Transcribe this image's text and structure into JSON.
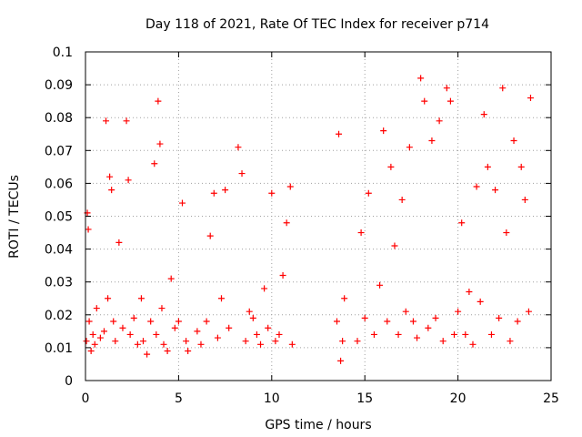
{
  "chart_data": {
    "type": "scatter",
    "title": "Day 118 of 2021, Rate Of TEC Index for receiver p714",
    "xlabel": "GPS time / hours",
    "ylabel": "ROTI / TECUs",
    "xlim": [
      0,
      25
    ],
    "ylim": [
      0,
      0.1
    ],
    "x_ticks": [
      0,
      5,
      10,
      15,
      20,
      25
    ],
    "x_tick_labels": [
      "0",
      "5",
      "10",
      "15",
      "20",
      "25"
    ],
    "y_ticks": [
      0,
      0.01,
      0.02,
      0.03,
      0.04,
      0.05,
      0.06,
      0.07,
      0.08,
      0.09,
      0.1
    ],
    "y_tick_labels": [
      "0",
      "0.01",
      "0.02",
      "0.03",
      "0.04",
      "0.05",
      "0.06",
      "0.07",
      "0.08",
      "0.09",
      "0.1"
    ],
    "grid": true,
    "marker": "+",
    "marker_color": "#ff0000",
    "series": [
      {
        "name": "ROTI",
        "x": [
          0.05,
          0.1,
          0.15,
          0.2,
          0.3,
          0.4,
          0.5,
          0.6,
          0.8,
          1.0,
          1.1,
          1.2,
          1.3,
          1.4,
          1.5,
          1.6,
          1.8,
          2.0,
          2.2,
          2.3,
          2.4,
          2.6,
          2.8,
          3.0,
          3.1,
          3.3,
          3.5,
          3.7,
          3.8,
          3.9,
          4.0,
          4.1,
          4.2,
          4.4,
          4.6,
          4.8,
          5.0,
          5.2,
          5.4,
          5.5,
          6.0,
          6.2,
          6.5,
          6.7,
          6.9,
          7.1,
          7.3,
          7.5,
          7.7,
          8.2,
          8.4,
          8.6,
          8.8,
          9.0,
          9.2,
          9.4,
          9.6,
          9.8,
          10.0,
          10.2,
          10.4,
          10.6,
          10.8,
          11.0,
          11.1,
          13.5,
          13.6,
          13.7,
          13.8,
          13.9,
          14.6,
          14.8,
          15.0,
          15.2,
          15.5,
          15.8,
          16.0,
          16.2,
          16.4,
          16.6,
          16.8,
          17.0,
          17.2,
          17.4,
          17.6,
          17.8,
          18.0,
          18.2,
          18.4,
          18.6,
          18.8,
          19.0,
          19.2,
          19.4,
          19.6,
          19.8,
          20.0,
          20.2,
          20.4,
          20.6,
          20.8,
          21.0,
          21.2,
          21.4,
          21.6,
          21.8,
          22.0,
          22.2,
          22.4,
          22.6,
          22.8,
          23.0,
          23.2,
          23.4,
          23.6,
          23.8,
          23.9
        ],
        "y": [
          0.012,
          0.051,
          0.046,
          0.018,
          0.009,
          0.014,
          0.011,
          0.022,
          0.013,
          0.015,
          0.079,
          0.025,
          0.062,
          0.058,
          0.018,
          0.012,
          0.042,
          0.016,
          0.079,
          0.061,
          0.014,
          0.019,
          0.011,
          0.025,
          0.012,
          0.008,
          0.018,
          0.066,
          0.014,
          0.085,
          0.072,
          0.022,
          0.011,
          0.009,
          0.031,
          0.016,
          0.018,
          0.054,
          0.012,
          0.009,
          0.015,
          0.011,
          0.018,
          0.044,
          0.057,
          0.013,
          0.025,
          0.058,
          0.016,
          0.071,
          0.063,
          0.012,
          0.021,
          0.019,
          0.014,
          0.011,
          0.028,
          0.016,
          0.057,
          0.012,
          0.014,
          0.032,
          0.048,
          0.059,
          0.011,
          0.018,
          0.075,
          0.006,
          0.012,
          0.025,
          0.012,
          0.045,
          0.019,
          0.057,
          0.014,
          0.029,
          0.076,
          0.018,
          0.065,
          0.041,
          0.014,
          0.055,
          0.021,
          0.071,
          0.018,
          0.013,
          0.092,
          0.085,
          0.016,
          0.073,
          0.019,
          0.079,
          0.012,
          0.089,
          0.085,
          0.014,
          0.021,
          0.048,
          0.014,
          0.027,
          0.011,
          0.059,
          0.024,
          0.081,
          0.065,
          0.014,
          0.058,
          0.019,
          0.089,
          0.045,
          0.012,
          0.073,
          0.018,
          0.065,
          0.055,
          0.021,
          0.086
        ]
      }
    ]
  }
}
